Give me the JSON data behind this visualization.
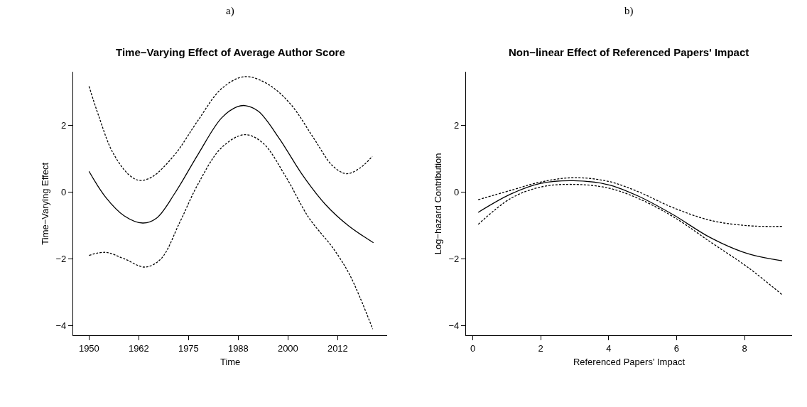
{
  "chart_data": [
    {
      "type": "line",
      "title": "Time−Varying Effect of Average Author Score",
      "annotations": [
        "a)"
      ],
      "xlabel": "Time",
      "ylabel": "Time−Varying Effect",
      "xlim": [
        1946,
        2025
      ],
      "xticks": [
        1950,
        {
          "value": 1962.5,
          "label": "1962"
        },
        1975,
        {
          "value": 1987.5,
          "label": "1988"
        },
        2000,
        {
          "value": 2012.5,
          "label": "2012"
        }
      ],
      "ylim": [
        -4.3,
        3.6
      ],
      "yticks": [
        -4,
        -2,
        0,
        2
      ],
      "series": [
        {
          "color": "#000000",
          "line_style": "solid",
          "x": [
            1950,
            1954.2,
            1958.8,
            1963.5,
            1967,
            1971.6,
            1977.4,
            1983.3,
            1987.3,
            1989.4,
            1992.6,
            1997.8,
            2003.6,
            2009.4,
            2015.2,
            2021.5
          ],
          "values": [
            0.62,
            -0.16,
            -0.71,
            -0.93,
            -0.78,
            -0.03,
            1.13,
            2.22,
            2.56,
            2.59,
            2.42,
            1.61,
            0.52,
            -0.37,
            -1.01,
            -1.52
          ]
        },
        {
          "color": "#000000",
          "line_style": "dashed",
          "x": [
            1950,
            1952.4,
            1955.9,
            1960,
            1962.6,
            1965.8,
            1971.6,
            1977.4,
            1983.3,
            1989.1,
            1994.9,
            2000.7,
            2006.5,
            2011.2,
            2014.7,
            2018.1,
            2021.2
          ],
          "values": [
            3.17,
            2.29,
            1.2,
            0.52,
            0.35,
            0.45,
            1.13,
            2.15,
            3.1,
            3.46,
            3.24,
            2.63,
            1.61,
            0.79,
            0.55,
            0.72,
            1.07
          ]
        },
        {
          "color": "#000000",
          "line_style": "dashed",
          "x": [
            1950,
            1954.2,
            1958.8,
            1964.1,
            1968.1,
            1972.8,
            1977.4,
            1983.3,
            1989.1,
            1993.7,
            1999.5,
            2005.3,
            2011.2,
            2015.2,
            2018.1,
            2021.3
          ],
          "values": [
            -1.9,
            -1.81,
            -2.0,
            -2.25,
            -2.0,
            -0.91,
            0.24,
            1.33,
            1.72,
            1.47,
            0.45,
            -0.78,
            -1.66,
            -2.41,
            -3.16,
            -4.11
          ]
        }
      ]
    },
    {
      "type": "line",
      "title": "Non−linear Effect of Referenced Papers' Impact",
      "annotations": [
        "b)"
      ],
      "xlabel": "Referenced Papers' Impact",
      "ylabel": "Log−hazard Contribution",
      "xlim": [
        -0.2,
        9.4
      ],
      "xticks": [
        0,
        2,
        4,
        6,
        8
      ],
      "ylim": [
        -4.3,
        3.6
      ],
      "yticks": [
        -4,
        -2,
        0,
        2
      ],
      "series": [
        {
          "color": "#000000",
          "line_style": "solid",
          "x": [
            0.16,
            1.12,
            2,
            2.96,
            3.99,
            4.87,
            5.9,
            7,
            8.1,
            9.11
          ],
          "values": [
            -0.61,
            -0.06,
            0.26,
            0.34,
            0.22,
            -0.12,
            -0.68,
            -1.37,
            -1.85,
            -2.06
          ]
        },
        {
          "color": "#000000",
          "line_style": "dashed",
          "x": [
            0.16,
            1.12,
            2,
            2.96,
            3.99,
            4.87,
            5.9,
            7,
            8.1,
            9.11
          ],
          "values": [
            -0.23,
            0.05,
            0.3,
            0.43,
            0.32,
            0.01,
            -0.47,
            -0.85,
            -1.01,
            -1.03
          ]
        },
        {
          "color": "#000000",
          "line_style": "dashed",
          "x": [
            0.16,
            1.12,
            2,
            2.96,
            3.99,
            4.87,
            5.9,
            7,
            8.1,
            9.11
          ],
          "values": [
            -0.97,
            -0.19,
            0.15,
            0.23,
            0.12,
            -0.19,
            -0.74,
            -1.5,
            -2.26,
            -3.08
          ]
        }
      ]
    }
  ]
}
